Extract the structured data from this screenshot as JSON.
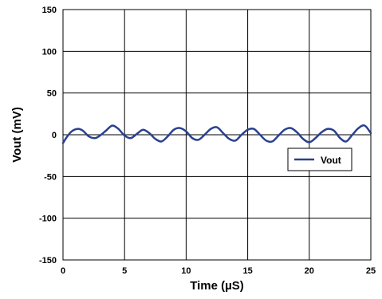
{
  "chart_data": {
    "type": "line",
    "title": "",
    "xlabel": "Time (µS)",
    "ylabel": "Vout (mV)",
    "xlim": [
      0,
      25
    ],
    "ylim": [
      -150,
      150
    ],
    "x_ticks": [
      0,
      5,
      10,
      15,
      20,
      25
    ],
    "y_ticks": [
      -150,
      -100,
      -50,
      0,
      50,
      100,
      150
    ],
    "grid": true,
    "legend": {
      "position": "right-middle",
      "entries": [
        "Vout"
      ]
    },
    "series": [
      {
        "name": "Vout",
        "color": "#2a4090",
        "x": [
          0,
          0.3,
          0.7,
          1.2,
          1.6,
          2.1,
          2.6,
          3.0,
          3.5,
          4.0,
          4.5,
          5.0,
          5.5,
          6.0,
          6.5,
          7.0,
          7.5,
          8.0,
          8.5,
          9.0,
          9.5,
          10.0,
          10.5,
          11.0,
          11.5,
          12.0,
          12.5,
          13.0,
          13.5,
          14.0,
          14.5,
          15.0,
          15.5,
          16.0,
          16.5,
          17.0,
          17.5,
          18.0,
          18.5,
          19.0,
          19.5,
          20.0,
          20.5,
          21.0,
          21.5,
          22.0,
          22.5,
          23.0,
          23.5,
          24.0,
          24.5,
          25.0
        ],
        "values": [
          -10,
          -3,
          4,
          7,
          5,
          -2,
          -4,
          -1,
          5,
          11,
          7,
          -1,
          -4,
          1,
          6,
          2,
          -5,
          -8,
          -2,
          6,
          8,
          4,
          -4,
          -6,
          0,
          7,
          9,
          2,
          -5,
          -7,
          0,
          6,
          7,
          0,
          -7,
          -8,
          -1,
          6,
          8,
          3,
          -5,
          -9,
          -4,
          3,
          7,
          5,
          -4,
          -8,
          0,
          8,
          11,
          2
        ]
      }
    ]
  }
}
